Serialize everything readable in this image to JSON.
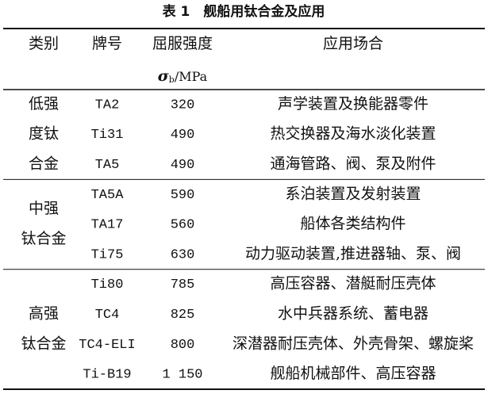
{
  "title": "表 1　舰船用钛合金及应用",
  "header": {
    "category": "类别",
    "grade": "牌号",
    "strength": "屈服强度",
    "symbol": "σ",
    "subscript": "b",
    "unit": "/MPa",
    "application": "应用场合"
  },
  "groups": [
    {
      "label": [
        "低强",
        "度钛",
        "合金"
      ],
      "rows": [
        [
          "TA2",
          "320",
          "声学装置及换能器零件"
        ],
        [
          "Ti31",
          "490",
          "热交换器及海水淡化装置"
        ],
        [
          "TA5",
          "490",
          "通海管路、阀、泵及附件"
        ]
      ]
    },
    {
      "label": [
        "中强",
        "钛合金"
      ],
      "rows": [
        [
          "TA5A",
          "590",
          "系泊装置及发射装置"
        ],
        [
          "TA17",
          "560",
          "船体各类结构件"
        ],
        [
          "Ti75",
          "630",
          "动力驱动装置,推进器轴、泵、阀"
        ]
      ]
    },
    {
      "label": [
        "高强",
        "钛合金"
      ],
      "rows": [
        [
          "Ti80",
          "785",
          "高压容器、潜艇耐压壳体"
        ],
        [
          "TC4",
          "825",
          "水中兵器系统、蓄电器"
        ],
        [
          "TC4-ELI",
          "800",
          "深潜器耐压壳体、外壳骨架、螺旋桨"
        ],
        [
          "Ti-B19",
          "1 150",
          "舰船机械部件、高压容器"
        ]
      ]
    }
  ]
}
